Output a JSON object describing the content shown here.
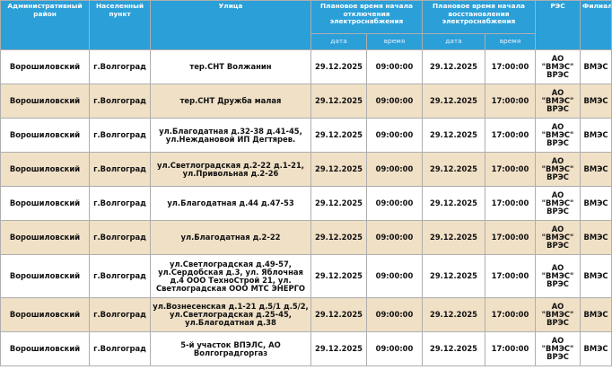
{
  "header": {
    "district": "Административный район",
    "locality": "Населенный пункт",
    "street": "Улица",
    "outage_start": "Плановое время начала отключения электроснабжения",
    "restore_start": "Плановое время начала восстановления электроснабжения",
    "res": "РЭС",
    "branch": "Филиал",
    "date": "дата",
    "time": "время"
  },
  "rows": [
    {
      "district": "Ворошиловский",
      "locality": "г.Волгоград",
      "street": "тер.СНТ Волжанин",
      "off_date": "29.12.2025",
      "off_time": "09:00:00",
      "on_date": "29.12.2025",
      "on_time": "17:00:00",
      "res": "АО \"ВМЭС\" ВРЭС",
      "branch": "ВМЭС"
    },
    {
      "district": "Ворошиловский",
      "locality": "г.Волгоград",
      "street": "тер.СНТ Дружба малая",
      "off_date": "29.12.2025",
      "off_time": "09:00:00",
      "on_date": "29.12.2025",
      "on_time": "17:00:00",
      "res": "АО \"ВМЭС\" ВРЭС",
      "branch": "ВМЭС"
    },
    {
      "district": "Ворошиловский",
      "locality": "г.Волгоград",
      "street": "ул.Благодатная д.32-38 д.41-45, ул.Неждановой ИП Дегтярев.",
      "off_date": "29.12.2025",
      "off_time": "09:00:00",
      "on_date": "29.12.2025",
      "on_time": "17:00:00",
      "res": "АО \"ВМЭС\" ВРЭС",
      "branch": "ВМЭС"
    },
    {
      "district": "Ворошиловский",
      "locality": "г.Волгоград",
      "street": "ул.Светлоградская д.2-22 д.1-21, ул.Привольная д.2-26",
      "off_date": "29.12.2025",
      "off_time": "09:00:00",
      "on_date": "29.12.2025",
      "on_time": "17:00:00",
      "res": "АО \"ВМЭС\" ВРЭС",
      "branch": "ВМЭС"
    },
    {
      "district": "Ворошиловский",
      "locality": "г.Волгоград",
      "street": "ул.Благодатная д.44 д.47-53",
      "off_date": "29.12.2025",
      "off_time": "09:00:00",
      "on_date": "29.12.2025",
      "on_time": "17:00:00",
      "res": "АО \"ВМЭС\" ВРЭС",
      "branch": "ВМЭС"
    },
    {
      "district": "Ворошиловский",
      "locality": "г.Волгоград",
      "street": "ул.Благодатная д.2-22",
      "off_date": "29.12.2025",
      "off_time": "09:00:00",
      "on_date": "29.12.2025",
      "on_time": "17:00:00",
      "res": "АО \"ВМЭС\" ВРЭС",
      "branch": "ВМЭС"
    },
    {
      "district": "Ворошиловский",
      "locality": "г.Волгоград",
      "street": "ул.Светлоградская д.49-57, ул.Сердобская д.3, ул. Яблочная д.4 ООО ТехноСтрой 21, ул. Светлоградская ООО МТС ЭНЕРГО",
      "off_date": "29.12.2025",
      "off_time": "09:00:00",
      "on_date": "29.12.2025",
      "on_time": "17:00:00",
      "res": "АО \"ВМЭС\" ВРЭС",
      "branch": "ВМЭС"
    },
    {
      "district": "Ворошиловский",
      "locality": "г.Волгоград",
      "street": "ул.Вознесенская д.1-21 д.5/1 д.5/2, ул.Светлоградская д.25-45, ул.Благодатная д.38",
      "off_date": "29.12.2025",
      "off_time": "09:00:00",
      "on_date": "29.12.2025",
      "on_time": "17:00:00",
      "res": "АО \"ВМЭС\" ВРЭС",
      "branch": "ВМЭС"
    },
    {
      "district": "Ворошиловский",
      "locality": "г.Волгоград",
      "street": "5-й участок ВПЭЛС, АО Волгоградгоргаз",
      "off_date": "29.12.2025",
      "off_time": "09:00:00",
      "on_date": "29.12.2025",
      "on_time": "17:00:00",
      "res": "АО \"ВМЭС\" ВРЭС",
      "branch": "ВМЭС"
    }
  ]
}
